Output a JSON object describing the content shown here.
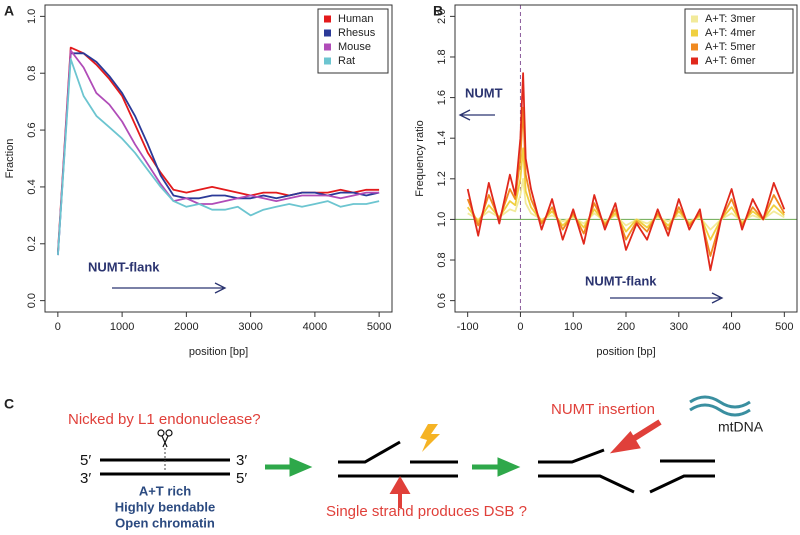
{
  "chart_data": [
    {
      "type": "line",
      "panel_label": "A",
      "x_label": "position [bp]",
      "y_label": "Fraction",
      "xlim": [
        -200,
        5200
      ],
      "ylim": [
        -0.04,
        1.04
      ],
      "xticks": [
        0,
        1000,
        2000,
        3000,
        4000,
        5000
      ],
      "yticks": [
        {
          "value": 0,
          "label": "0.0"
        },
        0.2,
        0.4,
        0.6,
        0.8,
        {
          "value": 1,
          "label": "1.0"
        }
      ],
      "legend": "top-right",
      "annotations": [
        "NUMT-flank"
      ],
      "x": [
        0,
        200,
        400,
        600,
        800,
        1000,
        1200,
        1400,
        1600,
        1800,
        2000,
        2200,
        2400,
        2600,
        2800,
        3000,
        3200,
        3400,
        3600,
        3800,
        4000,
        4200,
        4400,
        4600,
        4800,
        5000
      ],
      "series": [
        {
          "name": "Human",
          "color": "#e31a1c",
          "values": [
            0.17,
            0.89,
            0.87,
            0.83,
            0.78,
            0.72,
            0.62,
            0.52,
            0.45,
            0.39,
            0.38,
            0.39,
            0.4,
            0.39,
            0.38,
            0.37,
            0.38,
            0.38,
            0.37,
            0.38,
            0.38,
            0.38,
            0.39,
            0.38,
            0.39,
            0.39
          ]
        },
        {
          "name": "Rhesus",
          "color": "#2b3a98",
          "values": [
            0.16,
            0.87,
            0.87,
            0.84,
            0.79,
            0.73,
            0.65,
            0.55,
            0.44,
            0.37,
            0.36,
            0.36,
            0.37,
            0.37,
            0.36,
            0.36,
            0.37,
            0.36,
            0.37,
            0.38,
            0.38,
            0.37,
            0.38,
            0.38,
            0.37,
            0.38
          ]
        },
        {
          "name": "Mouse",
          "color": "#b04cb8",
          "values": [
            0.16,
            0.88,
            0.82,
            0.73,
            0.69,
            0.63,
            0.55,
            0.48,
            0.41,
            0.35,
            0.36,
            0.34,
            0.34,
            0.35,
            0.36,
            0.37,
            0.36,
            0.35,
            0.36,
            0.37,
            0.37,
            0.37,
            0.36,
            0.37,
            0.38,
            0.38
          ]
        },
        {
          "name": "Rat",
          "color": "#6cc5d0",
          "values": [
            0.16,
            0.85,
            0.72,
            0.65,
            0.61,
            0.57,
            0.52,
            0.46,
            0.4,
            0.35,
            0.33,
            0.34,
            0.32,
            0.32,
            0.33,
            0.3,
            0.32,
            0.33,
            0.34,
            0.33,
            0.34,
            0.35,
            0.33,
            0.34,
            0.34,
            0.35
          ]
        }
      ]
    },
    {
      "type": "line",
      "panel_label": "B",
      "x_label": "position [bp]",
      "y_label": "Frequency ratio",
      "xlim": [
        -124,
        524
      ],
      "ylim": [
        0.544,
        2.056
      ],
      "xticks": [
        -100,
        0,
        100,
        200,
        300,
        400,
        500
      ],
      "yticks": [
        0.6,
        0.8,
        {
          "value": 1,
          "label": "1.0"
        },
        1.2,
        1.4,
        1.6,
        1.8,
        {
          "value": 2,
          "label": "2.0"
        }
      ],
      "legend": "top-right",
      "annotations": [
        "NUMT",
        "NUMT-flank"
      ],
      "vline": 0,
      "hline": 1,
      "x": [
        -100,
        -80,
        -60,
        -40,
        -20,
        -10,
        0,
        5,
        10,
        20,
        40,
        60,
        80,
        100,
        120,
        140,
        160,
        180,
        200,
        220,
        240,
        260,
        280,
        300,
        320,
        340,
        360,
        380,
        400,
        420,
        440,
        460,
        480,
        500
      ],
      "series": [
        {
          "name": "A+T: 3mer",
          "color": "#f2ea9a",
          "values": [
            1.03,
            1.0,
            1.04,
            1.01,
            1.05,
            1.04,
            1.12,
            1.2,
            1.08,
            1.03,
            1.0,
            1.02,
            0.99,
            1.01,
            0.98,
            1.03,
            0.99,
            1.02,
            0.97,
            1.0,
            0.98,
            1.01,
            0.99,
            1.02,
            0.99,
            1.01,
            0.95,
            1.0,
            1.03,
            0.99,
            1.02,
            1.0,
            1.04,
            1.01
          ]
        },
        {
          "name": "A+T: 4mer",
          "color": "#f0d040",
          "values": [
            1.06,
            0.99,
            1.07,
            1.01,
            1.09,
            1.07,
            1.2,
            1.35,
            1.14,
            1.06,
            0.99,
            1.04,
            0.97,
            1.02,
            0.96,
            1.05,
            0.98,
            1.03,
            0.94,
            1.0,
            0.96,
            1.02,
            0.97,
            1.04,
            0.98,
            1.02,
            0.9,
            1.0,
            1.06,
            0.98,
            1.04,
            1.0,
            1.07,
            1.02
          ]
        },
        {
          "name": "A+T: 5mer",
          "color": "#f08a20",
          "values": [
            1.1,
            0.97,
            1.12,
            1.0,
            1.15,
            1.1,
            1.3,
            1.55,
            1.22,
            1.1,
            0.98,
            1.06,
            0.95,
            1.03,
            0.93,
            1.08,
            0.97,
            1.05,
            0.9,
            0.99,
            0.94,
            1.03,
            0.95,
            1.06,
            0.97,
            1.03,
            0.82,
            1.0,
            1.1,
            0.97,
            1.06,
            1.0,
            1.12,
            1.03
          ]
        },
        {
          "name": "A+T: 6mer",
          "color": "#e0281c",
          "values": [
            1.15,
            0.92,
            1.18,
            0.98,
            1.22,
            1.12,
            1.4,
            1.72,
            1.3,
            1.15,
            0.95,
            1.1,
            0.9,
            1.05,
            0.88,
            1.12,
            0.95,
            1.08,
            0.85,
            0.98,
            0.9,
            1.05,
            0.92,
            1.1,
            0.95,
            1.05,
            0.75,
            1.0,
            1.15,
            0.95,
            1.1,
            1.0,
            1.18,
            1.05
          ]
        }
      ]
    }
  ],
  "diagram": {
    "panel_label": "C",
    "nick_label": "Nicked by L1 endonuclease?",
    "ends": [
      "5′",
      "3′",
      "3′",
      "5′"
    ],
    "properties": [
      "A+T rich",
      "Highly bendable",
      "Open chromatin"
    ],
    "dsb_label": "Single strand produces DSB ?",
    "insertion_label": "NUMT insertion",
    "mtdna_label": "mtDNA"
  }
}
